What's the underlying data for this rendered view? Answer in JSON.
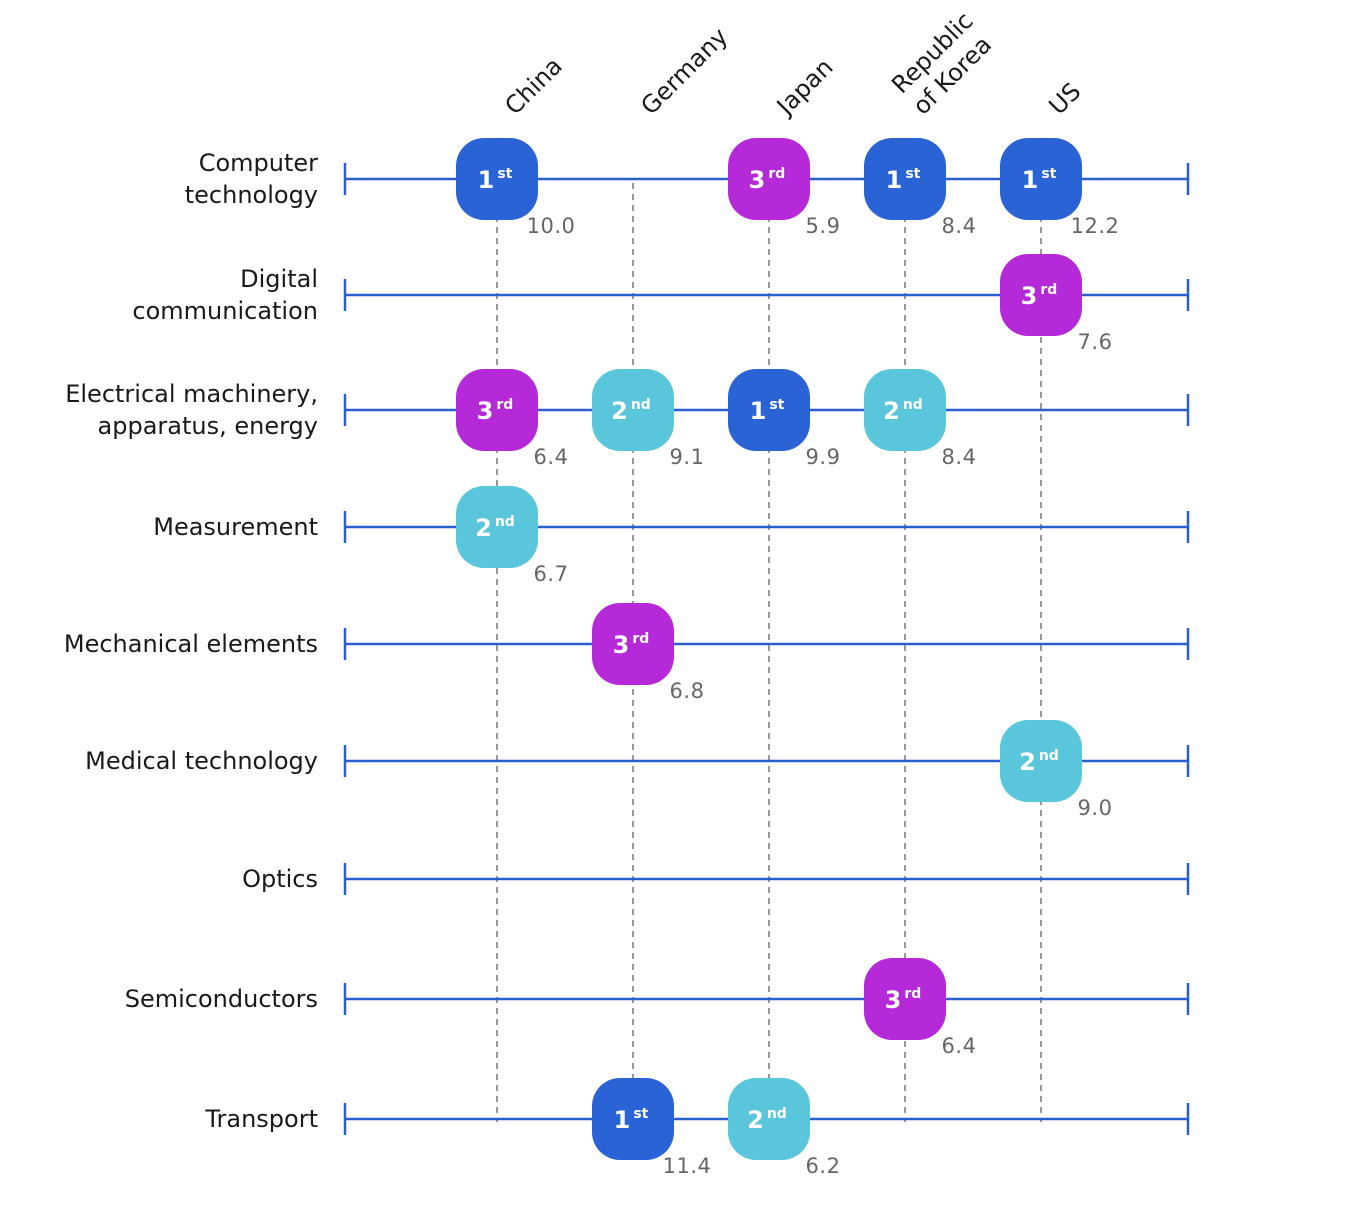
{
  "chart_data": {
    "type": "table",
    "title": "",
    "countries": [
      "China",
      "Germany",
      "Japan",
      "Republic of Korea",
      "US"
    ],
    "country_label_lines": [
      [
        "China"
      ],
      [
        "Germany"
      ],
      [
        "Japan"
      ],
      [
        "Republic",
        "of Korea"
      ],
      [
        "US"
      ]
    ],
    "fields": [
      "Computer technology",
      "Digital communication",
      "Electrical machinery, apparatus, energy",
      "Measurement",
      "Mechanical elements",
      "Medical technology",
      "Optics",
      "Semiconductors",
      "Transport"
    ],
    "field_label_lines": [
      [
        "Computer",
        "technology"
      ],
      [
        "Digital",
        "communication"
      ],
      [
        "Electrical machinery,",
        "apparatus, energy"
      ],
      [
        "Measurement"
      ],
      [
        "Mechanical elements"
      ],
      [
        "Medical technology"
      ],
      [
        "Optics"
      ],
      [
        "Semiconductors"
      ],
      [
        "Transport"
      ]
    ],
    "rank_colors": {
      "1": "#2a63d6",
      "2": "#5ac6dc",
      "3": "#b529d8"
    },
    "rank_suffixes": {
      "1": "st",
      "2": "nd",
      "3": "rd"
    },
    "line_color": "#2b5fce",
    "guide_color": "#555555",
    "entries": [
      {
        "field": "Computer technology",
        "country": "China",
        "rank": 1,
        "value": "10.0"
      },
      {
        "field": "Computer technology",
        "country": "Japan",
        "rank": 3,
        "value": "5.9"
      },
      {
        "field": "Computer technology",
        "country": "Republic of Korea",
        "rank": 1,
        "value": "8.4"
      },
      {
        "field": "Computer technology",
        "country": "US",
        "rank": 1,
        "value": "12.2"
      },
      {
        "field": "Digital communication",
        "country": "US",
        "rank": 3,
        "value": "7.6"
      },
      {
        "field": "Electrical machinery, apparatus, energy",
        "country": "China",
        "rank": 3,
        "value": "6.4"
      },
      {
        "field": "Electrical machinery, apparatus, energy",
        "country": "Germany",
        "rank": 2,
        "value": "9.1"
      },
      {
        "field": "Electrical machinery, apparatus, energy",
        "country": "Japan",
        "rank": 1,
        "value": "9.9"
      },
      {
        "field": "Electrical machinery, apparatus, energy",
        "country": "Republic of Korea",
        "rank": 2,
        "value": "8.4"
      },
      {
        "field": "Measurement",
        "country": "China",
        "rank": 2,
        "value": "6.7"
      },
      {
        "field": "Mechanical elements",
        "country": "Germany",
        "rank": 3,
        "value": "6.8"
      },
      {
        "field": "Medical technology",
        "country": "US",
        "rank": 2,
        "value": "9.0"
      },
      {
        "field": "Semiconductors",
        "country": "Republic of Korea",
        "rank": 3,
        "value": "6.4"
      },
      {
        "field": "Transport",
        "country": "Germany",
        "rank": 1,
        "value": "11.4"
      },
      {
        "field": "Transport",
        "country": "Japan",
        "rank": 2,
        "value": "6.2"
      }
    ]
  }
}
